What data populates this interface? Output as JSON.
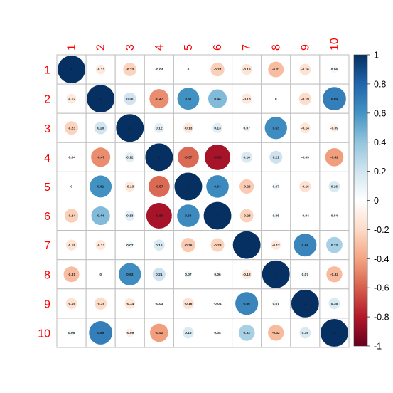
{
  "chart_data": {
    "type": "heatmap",
    "title": "",
    "variables": [
      "1",
      "2",
      "3",
      "4",
      "5",
      "6",
      "7",
      "8",
      "9",
      "10"
    ],
    "matrix": [
      [
        1,
        -0.12,
        -0.23,
        -0.04,
        0,
        -0.24,
        -0.15,
        -0.31,
        -0.16,
        0.06
      ],
      [
        -0.12,
        1,
        0.2,
        -0.47,
        0.61,
        0.44,
        -0.13,
        0,
        -0.19,
        0.69
      ],
      [
        -0.23,
        0.2,
        1,
        0.12,
        -0.13,
        0.13,
        0.07,
        0.63,
        -0.14,
        -0.09
      ],
      [
        -0.04,
        -0.47,
        0.12,
        1,
        -0.57,
        -0.83,
        0.16,
        0.21,
        -0.03,
        -0.42
      ],
      [
        0,
        0.61,
        -0.13,
        -0.57,
        1,
        0.64,
        -0.26,
        0.07,
        -0.16,
        0.16
      ],
      [
        -0.24,
        0.44,
        0.13,
        -0.83,
        0.64,
        1,
        -0.23,
        0.06,
        -0.04,
        0.04
      ],
      [
        -0.15,
        -0.13,
        0.07,
        0.16,
        -0.26,
        -0.23,
        1,
        -0.12,
        0.66,
        0.33
      ],
      [
        -0.31,
        0,
        0.63,
        0.21,
        0.07,
        0.06,
        -0.12,
        1,
        0.07,
        -0.32
      ],
      [
        -0.16,
        -0.19,
        -0.14,
        -0.03,
        -0.16,
        -0.04,
        0.66,
        0.07,
        1,
        0.16
      ],
      [
        0.06,
        0.69,
        -0.09,
        -0.42,
        0.16,
        0.04,
        0.33,
        -0.32,
        0.16,
        1
      ]
    ],
    "diagonal_label": "1",
    "color_scale": {
      "range": [
        -1,
        1
      ],
      "ticks": [
        {
          "value": 1,
          "label": "1"
        },
        {
          "value": 0.8,
          "label": "0.8"
        },
        {
          "value": 0.6,
          "label": "0.6"
        },
        {
          "value": 0.4,
          "label": "0.4"
        },
        {
          "value": 0.2,
          "label": "0.2"
        },
        {
          "value": 0,
          "label": "0"
        },
        {
          "value": -0.2,
          "label": "-0.2"
        },
        {
          "value": -0.4,
          "label": "-0.4"
        },
        {
          "value": -0.6,
          "label": "-0.6"
        },
        {
          "value": -0.8,
          "label": "-0.8"
        },
        {
          "value": -1,
          "label": "-1"
        }
      ],
      "colors": [
        "#67001F",
        "#B2182B",
        "#D6604D",
        "#F4A582",
        "#FDDBC7",
        "#FFFFFF",
        "#D1E5F0",
        "#92C5DE",
        "#4393C3",
        "#2166AC",
        "#053061"
      ]
    },
    "label_color": "#FF0000",
    "grid_color": "#BEBEBE",
    "legend_position": "right"
  }
}
